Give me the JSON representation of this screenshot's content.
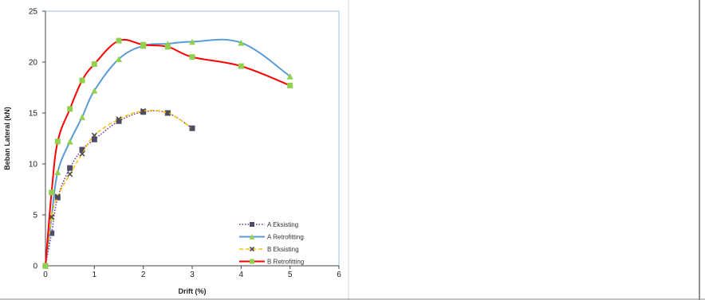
{
  "chart_data": {
    "type": "line",
    "title": "",
    "xlabel": "Drift (%)",
    "ylabel": "Beban Lateral (kN)",
    "xlim": [
      0,
      6
    ],
    "ylim": [
      0,
      25
    ],
    "x_ticks": [
      "0",
      "1",
      "2",
      "3",
      "4",
      "5",
      "6"
    ],
    "y_ticks": [
      "0",
      "5",
      "10",
      "15",
      "20",
      "25"
    ],
    "grid": false,
    "legend_position": "bottom-right",
    "series": [
      {
        "name": "A Eksisting",
        "color": "#7030A0",
        "marker": "square",
        "marker_color": "#4d4d6b",
        "dash": "dotted",
        "x": [
          0,
          0.125,
          0.25,
          0.5,
          0.75,
          1,
          1.5,
          2,
          2.5,
          3
        ],
        "y": [
          0,
          3.2,
          6.7,
          9.6,
          11.4,
          12.4,
          14.2,
          15.1,
          15.0,
          13.5
        ]
      },
      {
        "name": "A Retrofitting",
        "color": "#5B9BD5",
        "marker": "triangle",
        "marker_color": "#92D050",
        "dash": "solid",
        "x": [
          0,
          0.125,
          0.25,
          0.5,
          0.75,
          1,
          1.5,
          2,
          2.5,
          3,
          4,
          5
        ],
        "y": [
          0,
          4.8,
          9.2,
          12.2,
          14.6,
          17.2,
          20.3,
          21.6,
          21.8,
          22.0,
          21.9,
          18.6
        ]
      },
      {
        "name": "B Eksisting",
        "color": "#FFC000",
        "marker": "x",
        "marker_color": "#4d4d4d",
        "dash": "dashed",
        "x": [
          0,
          0.125,
          0.25,
          0.5,
          0.75,
          1,
          1.5,
          2,
          2.5,
          3
        ],
        "y": [
          0,
          4.8,
          6.8,
          9.0,
          11.0,
          12.8,
          14.4,
          15.2,
          15.0,
          13.5
        ]
      },
      {
        "name": "B Retrofitting",
        "color": "#FF0000",
        "marker": "square",
        "marker_color": "#92D050",
        "dash": "solid",
        "x": [
          0,
          0.125,
          0.25,
          0.5,
          0.75,
          1,
          1.5,
          2,
          2.5,
          3,
          4,
          5
        ],
        "y": [
          0,
          7.2,
          12.2,
          15.4,
          18.2,
          19.8,
          22.1,
          21.7,
          21.5,
          20.5,
          19.6,
          17.7
        ]
      }
    ]
  }
}
